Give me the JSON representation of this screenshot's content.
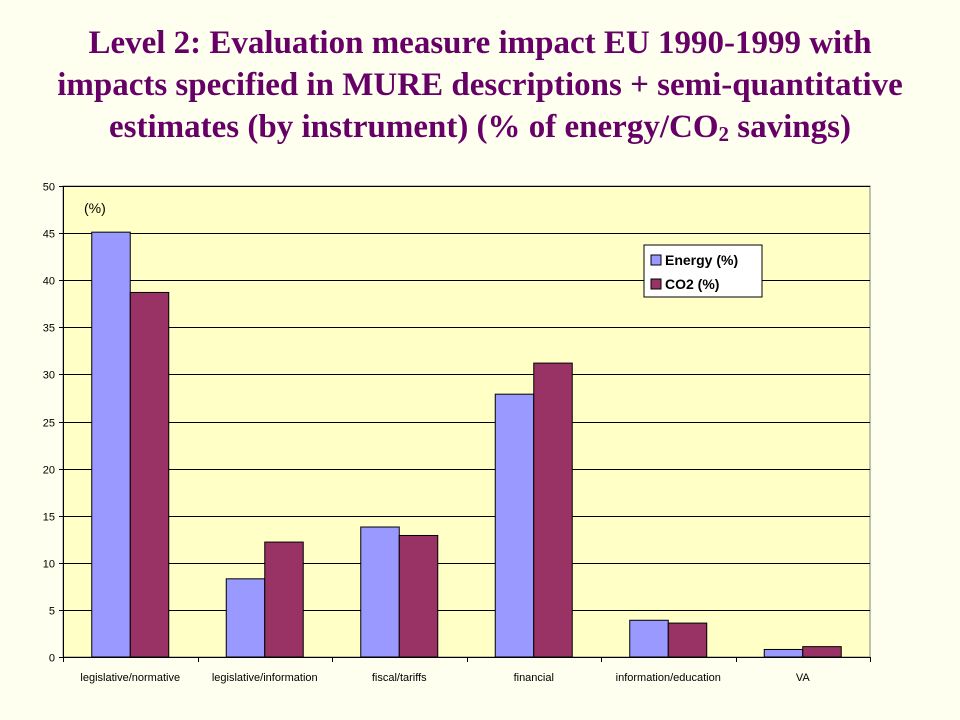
{
  "slide": {
    "title_line1": "Level 2: Evaluation measure impact EU 1990-1999 with",
    "title_line2": "impacts specified in MURE descriptions + semi-quantitative",
    "title_line3_pre": "estimates (by instrument) (% of energy/CO",
    "title_line3_sub": "2",
    "title_line3_post": " savings)"
  },
  "colors": {
    "background": "#FFFFF0",
    "title": "#660066",
    "plot_area": "#FFFFC6",
    "energy": "#9999FF",
    "co2": "#993366"
  },
  "chart_data": {
    "type": "bar",
    "title": "",
    "unit_label": "(%)",
    "xlabel": "",
    "ylabel": "",
    "categories": [
      "legislative/normative",
      "legislative/information",
      "fiscal/tariffs",
      "financial",
      "information/education",
      "VA"
    ],
    "series": [
      {
        "name": "Energy (%)",
        "values": [
          45.1,
          8.3,
          13.8,
          27.9,
          3.9,
          0.8
        ]
      },
      {
        "name": "CO2 (%)",
        "values": [
          38.7,
          12.2,
          12.9,
          31.2,
          3.6,
          1.1
        ]
      }
    ],
    "ylim": [
      0,
      50
    ],
    "yticks": [
      0,
      5,
      10,
      15,
      20,
      25,
      30,
      35,
      40,
      45,
      50
    ],
    "grid": true,
    "legend_position": "top-right"
  }
}
